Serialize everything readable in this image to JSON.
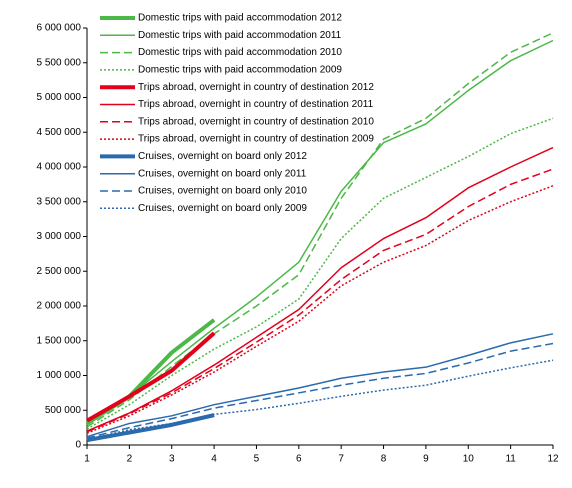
{
  "chart_data": {
    "type": "line",
    "x": [
      1,
      2,
      3,
      4,
      5,
      6,
      7,
      8,
      9,
      10,
      11,
      12
    ],
    "xlim": [
      1,
      12
    ],
    "xticks": [
      1,
      2,
      3,
      4,
      5,
      6,
      7,
      8,
      9,
      10,
      11,
      12
    ],
    "ylim": [
      0,
      6000000
    ],
    "yticks": [
      0,
      {
        "value": 500000,
        "label": "500 000"
      },
      {
        "value": 1000000,
        "label": "1 000 000"
      },
      {
        "value": 1500000,
        "label": "1 500 000"
      },
      {
        "value": 2000000,
        "label": "2 000 000"
      },
      {
        "value": 2500000,
        "label": "2 500 000"
      },
      {
        "value": 3000000,
        "label": "3 000 000"
      },
      {
        "value": 3500000,
        "label": "3 500 000"
      },
      {
        "value": 4000000,
        "label": "4 000 000"
      },
      {
        "value": 4500000,
        "label": "4 500 000"
      },
      {
        "value": 5000000,
        "label": "5 000 000"
      },
      {
        "value": 5500000,
        "label": "5 500 000"
      },
      {
        "value": 6000000,
        "label": "6 000 000"
      }
    ],
    "grid": false,
    "legend": "top-left",
    "series": [
      {
        "name": "Domestic trips with paid accommodation 2012",
        "color": "#4cb848",
        "style": "thick",
        "values": [
          310000,
          700000,
          1330000,
          1800000,
          null,
          null,
          null,
          null,
          null,
          null,
          null,
          null
        ]
      },
      {
        "name": "Domestic trips with paid accommodation 2011",
        "color": "#4cb848",
        "style": "solid",
        "values": [
          290000,
          700000,
          1200000,
          1680000,
          2130000,
          2630000,
          3650000,
          4350000,
          4620000,
          5100000,
          5530000,
          5820000
        ]
      },
      {
        "name": "Domestic trips with paid accommodation 2010",
        "color": "#4cb848",
        "style": "dashed",
        "values": [
          260000,
          650000,
          1130000,
          1600000,
          2000000,
          2450000,
          3550000,
          4400000,
          4700000,
          5200000,
          5650000,
          5930000
        ]
      },
      {
        "name": "Domestic trips with paid accommodation 2009",
        "color": "#4cb848",
        "style": "dotted",
        "values": [
          230000,
          580000,
          1000000,
          1380000,
          1700000,
          2100000,
          2970000,
          3550000,
          3850000,
          4150000,
          4480000,
          4700000
        ]
      },
      {
        "name": "Trips abroad, overnight in country of destination 2012",
        "color": "#e2001a",
        "style": "thick",
        "values": [
          350000,
          700000,
          1070000,
          1610000,
          null,
          null,
          null,
          null,
          null,
          null,
          null,
          null
        ]
      },
      {
        "name": "Trips abroad, overnight in country of destination 2011",
        "color": "#e2001a",
        "style": "solid",
        "values": [
          200000,
          460000,
          780000,
          1150000,
          1550000,
          1950000,
          2550000,
          2970000,
          3270000,
          3700000,
          4000000,
          4280000
        ]
      },
      {
        "name": "Trips abroad, overnight in country of destination 2010",
        "color": "#e2001a",
        "style": "dashed",
        "values": [
          190000,
          450000,
          750000,
          1100000,
          1480000,
          1870000,
          2380000,
          2800000,
          3030000,
          3430000,
          3750000,
          3970000
        ]
      },
      {
        "name": "Trips abroad, overnight in country of destination 2009",
        "color": "#e2001a",
        "style": "dotted",
        "values": [
          170000,
          420000,
          720000,
          1050000,
          1420000,
          1780000,
          2290000,
          2630000,
          2870000,
          3230000,
          3500000,
          3730000
        ]
      },
      {
        "name": "Cruises, overnight on board only 2012",
        "color": "#2a6aad",
        "style": "thick",
        "values": [
          70000,
          180000,
          290000,
          430000,
          null,
          null,
          null,
          null,
          null,
          null,
          null,
          null
        ]
      },
      {
        "name": "Cruises, overnight on board only 2011",
        "color": "#2a6aad",
        "style": "solid",
        "values": [
          120000,
          310000,
          420000,
          580000,
          700000,
          820000,
          960000,
          1050000,
          1120000,
          1290000,
          1470000,
          1600000
        ]
      },
      {
        "name": "Cruises, overnight on board only 2010",
        "color": "#2a6aad",
        "style": "dashed",
        "values": [
          100000,
          250000,
          380000,
          530000,
          640000,
          750000,
          860000,
          960000,
          1030000,
          1180000,
          1350000,
          1460000
        ]
      },
      {
        "name": "Cruises, overnight on board only 2009",
        "color": "#2a6aad",
        "style": "dotted",
        "values": [
          80000,
          220000,
          310000,
          440000,
          510000,
          600000,
          700000,
          790000,
          860000,
          990000,
          1110000,
          1220000
        ]
      }
    ]
  }
}
